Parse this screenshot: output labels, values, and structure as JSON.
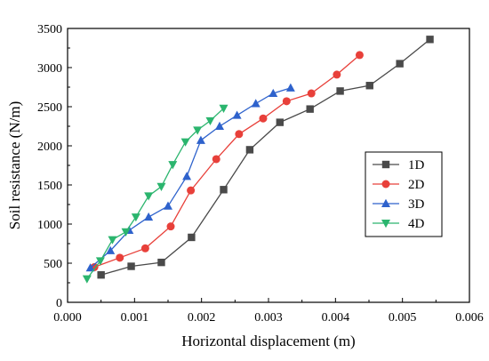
{
  "chart_data": {
    "type": "line",
    "xlabel": "Horizontal displacement (m)",
    "ylabel": "Soil resistance (N/m)",
    "xlim": [
      0.0,
      0.006
    ],
    "ylim": [
      0,
      3500
    ],
    "xticks": [
      "0.000",
      "0.001",
      "0.002",
      "0.003",
      "0.004",
      "0.005",
      "0.006"
    ],
    "yticks": [
      "0",
      "500",
      "1000",
      "1500",
      "2000",
      "2500",
      "3000",
      "3500"
    ],
    "grid": false,
    "legend_position": "right",
    "series": [
      {
        "name": "1D",
        "color": "#4a4a4a",
        "marker": "square",
        "x": [
          0.0005,
          0.00095,
          0.0014,
          0.00185,
          0.00233,
          0.00272,
          0.00317,
          0.00362,
          0.00407,
          0.00451,
          0.00496,
          0.00541
        ],
        "y": [
          350,
          460,
          510,
          830,
          1440,
          1950,
          2300,
          2470,
          2700,
          2770,
          3050,
          3360
        ]
      },
      {
        "name": "2D",
        "color": "#e8403a",
        "marker": "circle",
        "x": [
          0.0004,
          0.00078,
          0.00116,
          0.00154,
          0.00184,
          0.00222,
          0.00256,
          0.00292,
          0.00327,
          0.00364,
          0.00402,
          0.00436
        ],
        "y": [
          450,
          570,
          690,
          970,
          1430,
          1830,
          2150,
          2350,
          2570,
          2670,
          2910,
          3160
        ]
      },
      {
        "name": "3D",
        "color": "#2e62cc",
        "marker": "triangle-up",
        "x": [
          0.00034,
          0.00064,
          0.00092,
          0.00121,
          0.0015,
          0.00178,
          0.00199,
          0.00227,
          0.00253,
          0.00281,
          0.00307,
          0.00333
        ],
        "y": [
          440,
          660,
          920,
          1090,
          1230,
          1610,
          2070,
          2250,
          2390,
          2540,
          2670,
          2740
        ]
      },
      {
        "name": "4D",
        "color": "#2bb56e",
        "marker": "triangle-down",
        "x": [
          0.00029,
          0.00049,
          0.00067,
          0.00087,
          0.00102,
          0.00121,
          0.0014,
          0.00157,
          0.00176,
          0.00194,
          0.00213,
          0.00233
        ],
        "y": [
          300,
          530,
          800,
          900,
          1090,
          1360,
          1480,
          1760,
          2050,
          2200,
          2320,
          2480
        ]
      }
    ]
  }
}
